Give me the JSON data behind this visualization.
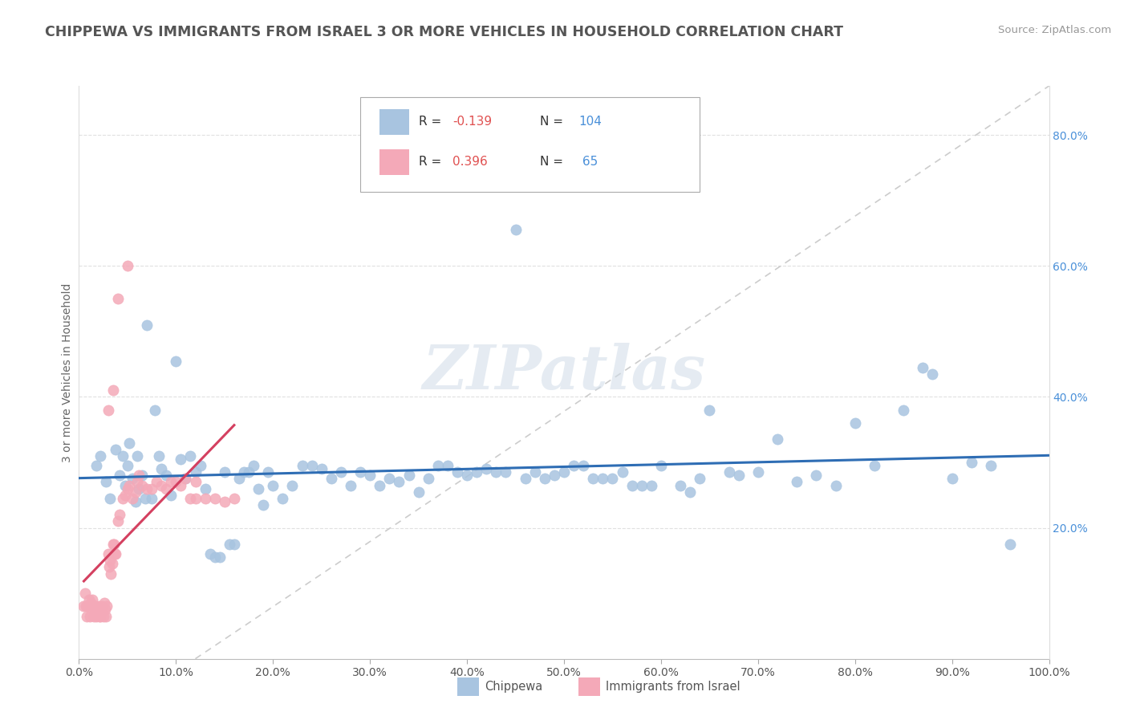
{
  "title": "CHIPPEWA VS IMMIGRANTS FROM ISRAEL 3 OR MORE VEHICLES IN HOUSEHOLD CORRELATION CHART",
  "source": "Source: ZipAtlas.com",
  "ylabel": "3 or more Vehicles in Household",
  "xlim": [
    0.0,
    1.0
  ],
  "ylim": [
    0.0,
    0.875
  ],
  "ytick_vals": [
    0.2,
    0.4,
    0.6,
    0.8
  ],
  "ytick_labels": [
    "20.0%",
    "40.0%",
    "60.0%",
    "80.0%"
  ],
  "xtick_vals": [
    0.0,
    0.1,
    0.2,
    0.3,
    0.4,
    0.5,
    0.6,
    0.7,
    0.8,
    0.9,
    1.0
  ],
  "xtick_labels": [
    "0.0%",
    "10.0%",
    "20.0%",
    "30.0%",
    "40.0%",
    "50.0%",
    "60.0%",
    "70.0%",
    "80.0%",
    "90.0%",
    "100.0%"
  ],
  "chippewa_color": "#a8c4e0",
  "israel_color": "#f4a9b8",
  "chippewa_line_color": "#2e6db4",
  "israel_line_color": "#d44060",
  "diag_color": "#cccccc",
  "watermark": "ZIPatlas",
  "background_color": "#ffffff",
  "grid_color": "#e0e0e0",
  "legend_box_color": "#ffffff",
  "legend_border_color": "#cccccc",
  "r1_val": "-0.139",
  "n1_val": "104",
  "r2_val": "0.396",
  "n2_val": "65",
  "chippewa_scatter": [
    [
      0.018,
      0.295
    ],
    [
      0.022,
      0.31
    ],
    [
      0.028,
      0.27
    ],
    [
      0.032,
      0.245
    ],
    [
      0.038,
      0.32
    ],
    [
      0.042,
      0.28
    ],
    [
      0.045,
      0.31
    ],
    [
      0.048,
      0.265
    ],
    [
      0.05,
      0.295
    ],
    [
      0.052,
      0.33
    ],
    [
      0.055,
      0.275
    ],
    [
      0.058,
      0.24
    ],
    [
      0.06,
      0.31
    ],
    [
      0.062,
      0.26
    ],
    [
      0.065,
      0.28
    ],
    [
      0.068,
      0.245
    ],
    [
      0.07,
      0.51
    ],
    [
      0.075,
      0.245
    ],
    [
      0.078,
      0.38
    ],
    [
      0.082,
      0.31
    ],
    [
      0.085,
      0.29
    ],
    [
      0.09,
      0.28
    ],
    [
      0.095,
      0.25
    ],
    [
      0.1,
      0.455
    ],
    [
      0.105,
      0.305
    ],
    [
      0.11,
      0.275
    ],
    [
      0.115,
      0.31
    ],
    [
      0.12,
      0.285
    ],
    [
      0.125,
      0.295
    ],
    [
      0.13,
      0.26
    ],
    [
      0.135,
      0.16
    ],
    [
      0.14,
      0.155
    ],
    [
      0.145,
      0.155
    ],
    [
      0.15,
      0.285
    ],
    [
      0.155,
      0.175
    ],
    [
      0.16,
      0.175
    ],
    [
      0.165,
      0.275
    ],
    [
      0.17,
      0.285
    ],
    [
      0.175,
      0.285
    ],
    [
      0.18,
      0.295
    ],
    [
      0.185,
      0.26
    ],
    [
      0.19,
      0.235
    ],
    [
      0.195,
      0.285
    ],
    [
      0.2,
      0.265
    ],
    [
      0.21,
      0.245
    ],
    [
      0.22,
      0.265
    ],
    [
      0.23,
      0.295
    ],
    [
      0.24,
      0.295
    ],
    [
      0.25,
      0.29
    ],
    [
      0.26,
      0.275
    ],
    [
      0.27,
      0.285
    ],
    [
      0.28,
      0.265
    ],
    [
      0.29,
      0.285
    ],
    [
      0.3,
      0.28
    ],
    [
      0.31,
      0.265
    ],
    [
      0.32,
      0.275
    ],
    [
      0.33,
      0.27
    ],
    [
      0.34,
      0.28
    ],
    [
      0.35,
      0.255
    ],
    [
      0.36,
      0.275
    ],
    [
      0.37,
      0.295
    ],
    [
      0.38,
      0.295
    ],
    [
      0.39,
      0.285
    ],
    [
      0.4,
      0.28
    ],
    [
      0.41,
      0.285
    ],
    [
      0.42,
      0.29
    ],
    [
      0.43,
      0.285
    ],
    [
      0.44,
      0.285
    ],
    [
      0.45,
      0.655
    ],
    [
      0.46,
      0.275
    ],
    [
      0.47,
      0.285
    ],
    [
      0.48,
      0.275
    ],
    [
      0.49,
      0.28
    ],
    [
      0.5,
      0.285
    ],
    [
      0.51,
      0.295
    ],
    [
      0.52,
      0.295
    ],
    [
      0.53,
      0.275
    ],
    [
      0.54,
      0.275
    ],
    [
      0.55,
      0.275
    ],
    [
      0.56,
      0.285
    ],
    [
      0.57,
      0.265
    ],
    [
      0.58,
      0.265
    ],
    [
      0.59,
      0.265
    ],
    [
      0.6,
      0.295
    ],
    [
      0.62,
      0.265
    ],
    [
      0.63,
      0.255
    ],
    [
      0.64,
      0.275
    ],
    [
      0.65,
      0.38
    ],
    [
      0.67,
      0.285
    ],
    [
      0.68,
      0.28
    ],
    [
      0.7,
      0.285
    ],
    [
      0.72,
      0.335
    ],
    [
      0.74,
      0.27
    ],
    [
      0.76,
      0.28
    ],
    [
      0.78,
      0.265
    ],
    [
      0.8,
      0.36
    ],
    [
      0.82,
      0.295
    ],
    [
      0.85,
      0.38
    ],
    [
      0.87,
      0.445
    ],
    [
      0.88,
      0.435
    ],
    [
      0.9,
      0.275
    ],
    [
      0.92,
      0.3
    ],
    [
      0.94,
      0.295
    ],
    [
      0.96,
      0.175
    ]
  ],
  "israel_scatter": [
    [
      0.005,
      0.08
    ],
    [
      0.006,
      0.1
    ],
    [
      0.007,
      0.08
    ],
    [
      0.008,
      0.065
    ],
    [
      0.009,
      0.08
    ],
    [
      0.01,
      0.09
    ],
    [
      0.011,
      0.065
    ],
    [
      0.012,
      0.085
    ],
    [
      0.013,
      0.08
    ],
    [
      0.014,
      0.09
    ],
    [
      0.015,
      0.065
    ],
    [
      0.016,
      0.07
    ],
    [
      0.017,
      0.08
    ],
    [
      0.018,
      0.065
    ],
    [
      0.019,
      0.075
    ],
    [
      0.02,
      0.08
    ],
    [
      0.021,
      0.065
    ],
    [
      0.022,
      0.065
    ],
    [
      0.023,
      0.075
    ],
    [
      0.024,
      0.08
    ],
    [
      0.025,
      0.065
    ],
    [
      0.026,
      0.085
    ],
    [
      0.027,
      0.075
    ],
    [
      0.028,
      0.065
    ],
    [
      0.029,
      0.08
    ],
    [
      0.03,
      0.16
    ],
    [
      0.031,
      0.14
    ],
    [
      0.032,
      0.15
    ],
    [
      0.033,
      0.13
    ],
    [
      0.034,
      0.145
    ],
    [
      0.035,
      0.175
    ],
    [
      0.036,
      0.175
    ],
    [
      0.037,
      0.16
    ],
    [
      0.038,
      0.16
    ],
    [
      0.04,
      0.21
    ],
    [
      0.042,
      0.22
    ],
    [
      0.045,
      0.245
    ],
    [
      0.048,
      0.25
    ],
    [
      0.05,
      0.26
    ],
    [
      0.052,
      0.265
    ],
    [
      0.055,
      0.245
    ],
    [
      0.058,
      0.255
    ],
    [
      0.06,
      0.27
    ],
    [
      0.062,
      0.28
    ],
    [
      0.065,
      0.265
    ],
    [
      0.07,
      0.26
    ],
    [
      0.075,
      0.26
    ],
    [
      0.08,
      0.27
    ],
    [
      0.085,
      0.265
    ],
    [
      0.09,
      0.26
    ],
    [
      0.095,
      0.27
    ],
    [
      0.1,
      0.27
    ],
    [
      0.105,
      0.265
    ],
    [
      0.11,
      0.275
    ],
    [
      0.115,
      0.245
    ],
    [
      0.12,
      0.245
    ],
    [
      0.13,
      0.245
    ],
    [
      0.14,
      0.245
    ],
    [
      0.15,
      0.24
    ],
    [
      0.16,
      0.245
    ],
    [
      0.04,
      0.55
    ],
    [
      0.05,
      0.6
    ],
    [
      0.03,
      0.38
    ],
    [
      0.035,
      0.41
    ],
    [
      0.12,
      0.27
    ]
  ]
}
